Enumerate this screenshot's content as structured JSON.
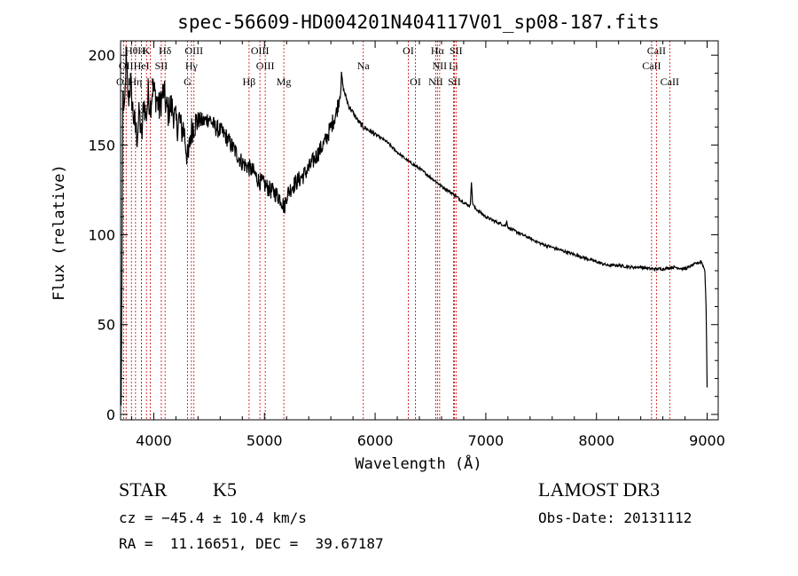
{
  "chart_data": {
    "type": "line",
    "title": "spec-56609-HD004201N404117V01_sp08-187.fits",
    "xlabel": "Wavelength (Å)",
    "ylabel": "Flux (relative)",
    "xlim": [
      3700,
      9100
    ],
    "ylim": [
      -3,
      208
    ],
    "xticks": [
      {
        "value": 4000,
        "label": "4000"
      },
      {
        "value": 5000,
        "label": "5000"
      },
      {
        "value": 6000,
        "label": "6000"
      },
      {
        "value": 7000,
        "label": "7000"
      },
      {
        "value": 8000,
        "label": "8000"
      },
      {
        "value": 9000,
        "label": "9000"
      }
    ],
    "yticks": [
      {
        "value": 0,
        "label": "0"
      },
      {
        "value": 50,
        "label": "50"
      },
      {
        "value": 100,
        "label": "100"
      },
      {
        "value": 150,
        "label": "150"
      },
      {
        "value": 200,
        "label": "200"
      }
    ],
    "series": [
      {
        "name": "Flux",
        "x": [
          3705,
          3712,
          3720,
          3735,
          3750,
          3770,
          3790,
          3810,
          3830,
          3850,
          3870,
          3890,
          3910,
          3930,
          3950,
          3970,
          3990,
          4010,
          4030,
          4050,
          4070,
          4090,
          4110,
          4130,
          4150,
          4170,
          4190,
          4210,
          4230,
          4250,
          4270,
          4290,
          4310,
          4330,
          4350,
          4370,
          4400,
          4450,
          4500,
          4550,
          4600,
          4650,
          4700,
          4750,
          4800,
          4850,
          4900,
          4950,
          5000,
          5050,
          5100,
          5150,
          5180,
          5200,
          5250,
          5300,
          5350,
          5400,
          5450,
          5500,
          5550,
          5600,
          5650,
          5680,
          5700,
          5710,
          5720,
          5740,
          5760,
          5800,
          5850,
          5893,
          5950,
          6000,
          6100,
          6200,
          6300,
          6400,
          6500,
          6563,
          6600,
          6700,
          6800,
          6860,
          6870,
          6880,
          6900,
          7000,
          7100,
          7180,
          7190,
          7200,
          7300,
          7400,
          7500,
          7600,
          7700,
          7800,
          7900,
          8000,
          8100,
          8200,
          8300,
          8400,
          8500,
          8600,
          8700,
          8800,
          8900,
          8950,
          8980,
          8990,
          8995,
          9000
        ],
        "y": [
          5,
          80,
          180,
          165,
          198,
          175,
          185,
          170,
          160,
          155,
          168,
          152,
          175,
          165,
          178,
          172,
          182,
          178,
          175,
          170,
          176,
          180,
          172,
          168,
          172,
          170,
          165,
          160,
          165,
          158,
          160,
          150,
          140,
          155,
          160,
          162,
          164,
          163,
          165,
          160,
          158,
          155,
          150,
          145,
          140,
          138,
          135,
          130,
          128,
          125,
          123,
          120,
          115,
          122,
          127,
          130,
          133,
          137,
          142,
          147,
          152,
          160,
          168,
          178,
          188,
          182,
          180,
          176,
          172,
          168,
          163,
          160,
          158,
          156,
          152,
          146,
          141,
          137,
          132,
          129,
          127,
          123,
          118,
          116,
          130,
          118,
          115,
          110,
          107,
          105,
          108,
          104,
          101,
          98,
          95,
          93,
          91,
          89,
          87,
          85,
          83,
          83,
          82,
          82,
          81,
          81,
          82,
          81,
          84,
          85,
          80,
          60,
          40,
          15
        ]
      }
    ],
    "lines_top": [
      {
        "wl": 3798,
        "label": "Hθ"
      },
      {
        "wl": 3889,
        "label": "H"
      },
      {
        "wl": 3934,
        "label": "K"
      },
      {
        "wl": 4102,
        "label": "Hδ"
      },
      {
        "wl": 4363,
        "label": "OIII"
      },
      {
        "wl": 4959,
        "label": "OIII"
      },
      {
        "wl": 6300,
        "label": "OI"
      },
      {
        "wl": 6563,
        "label": "Hα"
      },
      {
        "wl": 6731,
        "label": "SII"
      },
      {
        "wl": 8542,
        "label": "CaII"
      }
    ],
    "lines_mid": [
      {
        "wl": 3750,
        "label": "OII"
      },
      {
        "wl": 3889,
        "label": "HeI"
      },
      {
        "wl": 4068,
        "label": "SII"
      },
      {
        "wl": 4340,
        "label": "Hγ"
      },
      {
        "wl": 5007,
        "label": "OIII"
      },
      {
        "wl": 5893,
        "label": "Na"
      },
      {
        "wl": 6583,
        "label": "NII"
      },
      {
        "wl": 6708,
        "label": "Li"
      },
      {
        "wl": 8498,
        "label": "CaII"
      }
    ],
    "lines_bottom": [
      {
        "wl": 3727,
        "label": "OII"
      },
      {
        "wl": 3835,
        "label": "Hη"
      },
      {
        "wl": 3968,
        "label": "H"
      },
      {
        "wl": 4305,
        "label": "G"
      },
      {
        "wl": 4861,
        "label": "Hβ"
      },
      {
        "wl": 5175,
        "label": "Mg"
      },
      {
        "wl": 6364,
        "label": "OI"
      },
      {
        "wl": 6548,
        "label": "NII"
      },
      {
        "wl": 6716,
        "label": "SII"
      },
      {
        "wl": 8662,
        "label": "CaII"
      }
    ],
    "line_color": "#cc0000",
    "grid": false
  },
  "info": {
    "class_label": "STAR",
    "subclass": "K5",
    "survey": "LAMOST DR3",
    "cz_text": "cz = −45.4 ± 10.4 km/s",
    "obs_date": "Obs-Date: 20131112",
    "coords_text": "RA =  11.16651, DEC =  39.67187"
  }
}
